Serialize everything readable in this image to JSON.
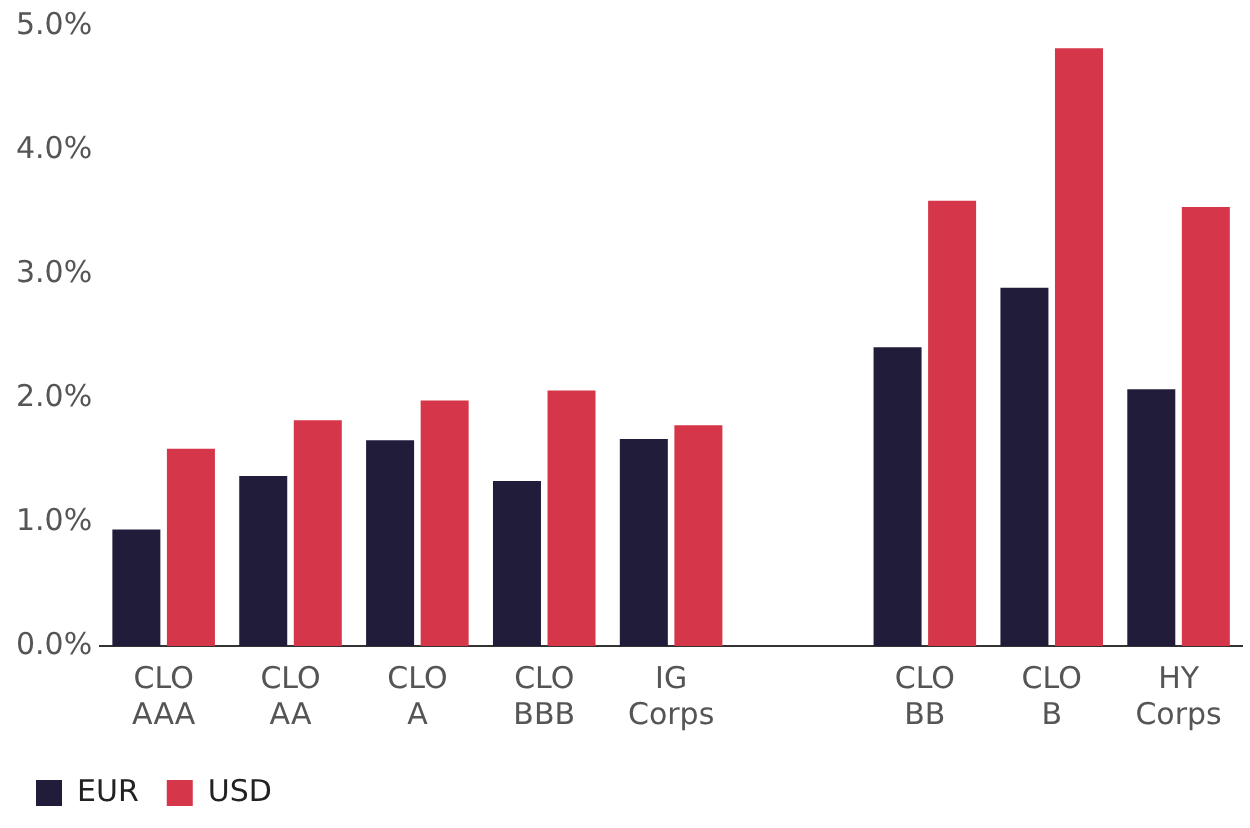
{
  "chart_data": {
    "type": "bar",
    "categories": [
      "CLO\nAAA",
      "CLO\nAA",
      "CLO\nA",
      "CLO\nBBB",
      "IG\nCorps",
      null,
      "CLO\nBB",
      "CLO\nB",
      "HY\nCorps"
    ],
    "series": [
      {
        "name": "EUR",
        "color": "#221c3b",
        "values": [
          0.94,
          1.37,
          1.66,
          1.33,
          1.67,
          null,
          2.41,
          2.89,
          2.07
        ]
      },
      {
        "name": "USD",
        "color": "#d63649",
        "values": [
          1.59,
          1.82,
          1.98,
          2.06,
          1.78,
          null,
          3.59,
          4.82,
          3.54
        ]
      }
    ],
    "ylim": [
      0,
      5
    ],
    "yticks": [
      {
        "value": 0,
        "label": "0.0%"
      },
      {
        "value": 1,
        "label": "1.0%"
      },
      {
        "value": 2,
        "label": "2.0%"
      },
      {
        "value": 3,
        "label": "3.0%"
      },
      {
        "value": 4,
        "label": "4.0%"
      },
      {
        "value": 5,
        "label": "5.0%"
      }
    ],
    "grid": false,
    "legend": "bottom left"
  }
}
